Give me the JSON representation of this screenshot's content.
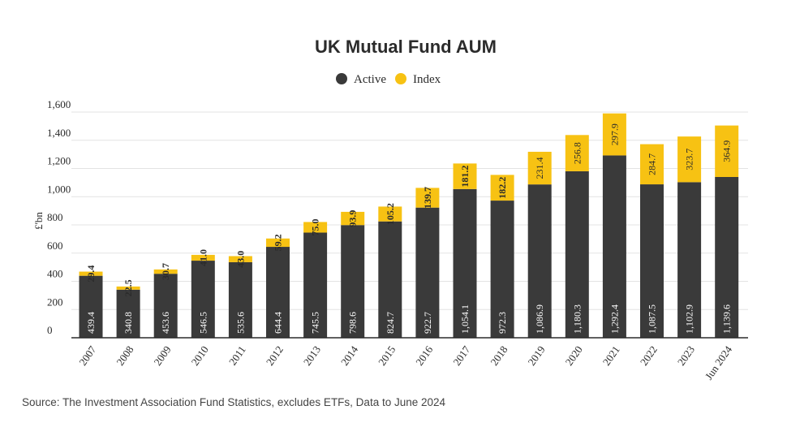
{
  "colors": {
    "active": "#3a3a3a",
    "index": "#f7c213",
    "grid": "#e3e3e3",
    "axis": "#2b2b2b"
  },
  "source": "Source: The Investment Association Fund Statistics, excludes ETFs, Data to June 2024",
  "chart_data": {
    "type": "bar",
    "stacked": true,
    "title": "UK Mutual Fund AUM",
    "ylabel": "£'bn",
    "xlabel": "",
    "ylim": [
      0,
      1600
    ],
    "yticks": [
      0,
      200,
      400,
      600,
      800,
      1000,
      1200,
      1400,
      1600
    ],
    "ytick_labels": [
      "0",
      "200",
      "400",
      "600",
      "800",
      "1,000",
      "1,200",
      "1,400",
      "1,600"
    ],
    "grid": true,
    "legend": "top-center",
    "categories": [
      "2007",
      "2008",
      "2009",
      "2010",
      "2011",
      "2012",
      "2013",
      "2014",
      "2015",
      "2016",
      "2017",
      "2018",
      "2019",
      "2020",
      "2021",
      "2022",
      "2023",
      "Jun 2024"
    ],
    "series": [
      {
        "name": "Active",
        "values": [
          439.4,
          340.8,
          453.6,
          546.5,
          535.6,
          644.4,
          745.5,
          798.6,
          824.7,
          922.7,
          1054.1,
          972.3,
          1086.9,
          1180.3,
          1292.4,
          1087.5,
          1102.9,
          1139.6
        ],
        "labels": [
          "439.4",
          "340.8",
          "453.6",
          "546.5",
          "535.6",
          "644.4",
          "745.5",
          "798.6",
          "824.7",
          "922.7",
          "1,054.1",
          "972.3",
          "1,086.9",
          "1,180.3",
          "1,292.4",
          "1,087.5",
          "1,102.9",
          "1,139.6"
        ]
      },
      {
        "name": "Index",
        "values": [
          29.4,
          22.5,
          30.7,
          41.0,
          43.0,
          59.2,
          75.0,
          93.9,
          105.2,
          139.7,
          181.2,
          182.2,
          231.4,
          256.8,
          297.9,
          284.7,
          323.7,
          364.9
        ],
        "labels": [
          "29.4",
          "22.5",
          "30.7",
          "41.0",
          "43.0",
          "59.2",
          "75.0",
          "93.9",
          "105.2",
          "139.7",
          "181.2",
          "182.2",
          "231.4",
          "256.8",
          "297.9",
          "284.7",
          "323.7",
          "364.9"
        ]
      }
    ]
  }
}
